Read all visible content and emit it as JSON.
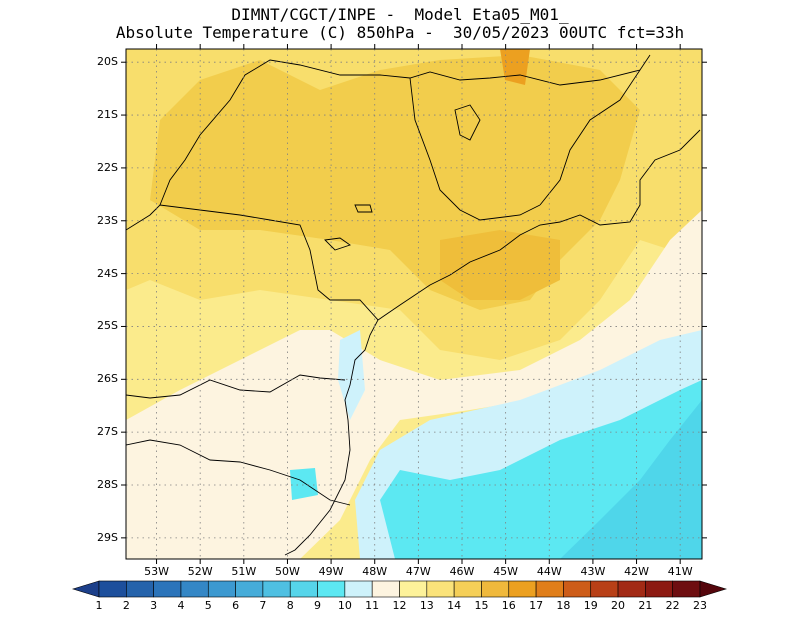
{
  "title": {
    "line1": "DIMNT/CGCT/INPE -  Model Eta05_M01_",
    "line2": "Absolute Temperature (C) 850hPa -  30/05/2023 00UTC fct=33h"
  },
  "map": {
    "lat_labels": [
      "20S",
      "21S",
      "22S",
      "23S",
      "24S",
      "25S",
      "26S",
      "27S",
      "28S",
      "29S"
    ],
    "lon_labels": [
      "53W",
      "52W",
      "51W",
      "50W",
      "49W",
      "48W",
      "47W",
      "46W",
      "45W",
      "44W",
      "43W",
      "42W",
      "41W"
    ],
    "lat_values": [
      -20,
      -21,
      -22,
      -23,
      -24,
      -25,
      -26,
      -27,
      -28,
      -29
    ],
    "lon_values": [
      -53,
      -52,
      -51,
      -50,
      -49,
      -48,
      -47,
      -46,
      -45,
      -44,
      -43,
      -42,
      -41
    ],
    "extent": {
      "lon_min": -53.7,
      "lon_max": -40.5,
      "lat_max": -19.75,
      "lat_min": -29.4
    },
    "grid": "dotted"
  },
  "colorbar": {
    "labels": [
      "1",
      "2",
      "3",
      "4",
      "5",
      "6",
      "7",
      "8",
      "9",
      "10",
      "11",
      "12",
      "13",
      "14",
      "15",
      "16",
      "17",
      "18",
      "19",
      "20",
      "21",
      "22",
      "23"
    ],
    "colors": [
      "#1c3f8a",
      "#1d4f9c",
      "#2563ab",
      "#2b74ba",
      "#3487c6",
      "#3c99d0",
      "#46acd9",
      "#4fc0e2",
      "#56d5ea",
      "#5ce8f2",
      "#cef2fb",
      "#fdf4e0",
      "#fdf29a",
      "#fbe37a",
      "#f5cf58",
      "#f0b93c",
      "#eca020",
      "#e07e1a",
      "#cd5c18",
      "#b84017",
      "#a22a15",
      "#8c1a12",
      "#6e0e10",
      "#55060c"
    ]
  }
}
